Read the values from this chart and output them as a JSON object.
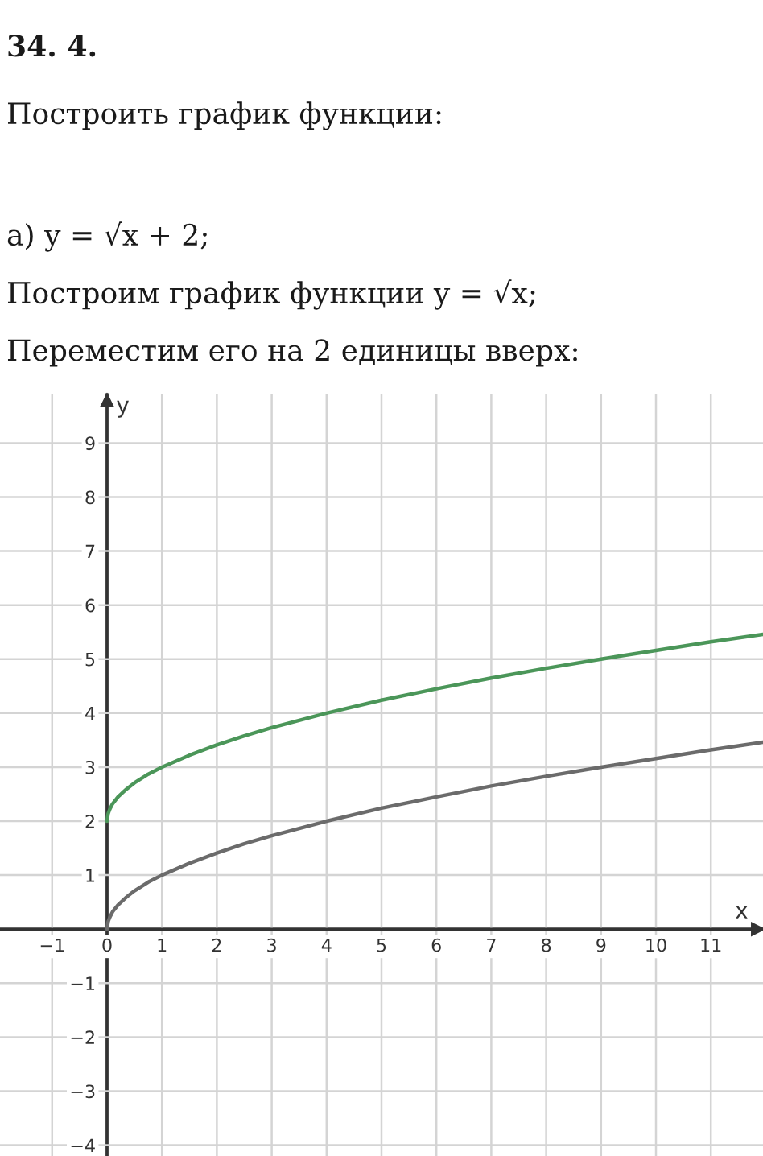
{
  "chart_data": {
    "type": "line",
    "title": "34. 4.",
    "subtitle": "Построить график функции:",
    "annotations": [
      "а) y = √x + 2;",
      "Построим график функции y = √x;",
      "Переместим его на 2 единицы вверх:"
    ],
    "xlabel": "x",
    "ylabel": "y",
    "x": [
      0,
      0.02,
      0.05,
      0.1,
      0.2,
      0.35,
      0.5,
      0.75,
      1,
      1.5,
      2,
      2.5,
      3,
      4,
      5,
      6,
      7,
      8,
      9,
      10,
      11,
      11.95
    ],
    "series": [
      {
        "color": "#6b6b6b",
        "values": [
          0,
          0.14,
          0.22,
          0.32,
          0.45,
          0.59,
          0.71,
          0.87,
          1,
          1.22,
          1.41,
          1.58,
          1.73,
          2,
          2.24,
          2.45,
          2.65,
          2.83,
          3,
          3.16,
          3.32,
          3.46
        ]
      },
      {
        "color": "#4b9659",
        "values": [
          2,
          2.14,
          2.22,
          2.32,
          2.45,
          2.59,
          2.71,
          2.87,
          3,
          3.22,
          3.41,
          3.58,
          3.73,
          4,
          4.24,
          4.45,
          4.65,
          4.83,
          5,
          5.16,
          5.32,
          5.46
        ]
      }
    ],
    "xlim": [
      -1.95,
      11.95
    ],
    "ylim": [
      -4.2,
      9.9
    ],
    "xticks": [
      {
        "value": -1,
        "label": "−1"
      },
      0,
      1,
      2,
      3,
      4,
      5,
      6,
      7,
      8,
      9,
      10,
      11
    ],
    "yticks": [
      {
        "value": -4,
        "label": "−4"
      },
      {
        "value": -3,
        "label": "−3"
      },
      {
        "value": -2,
        "label": "−2"
      },
      {
        "value": -1,
        "label": "−1"
      },
      {
        "value": 0,
        "label": null
      },
      1,
      2,
      3,
      4,
      5,
      6,
      7,
      8,
      9
    ],
    "grid": true
  }
}
